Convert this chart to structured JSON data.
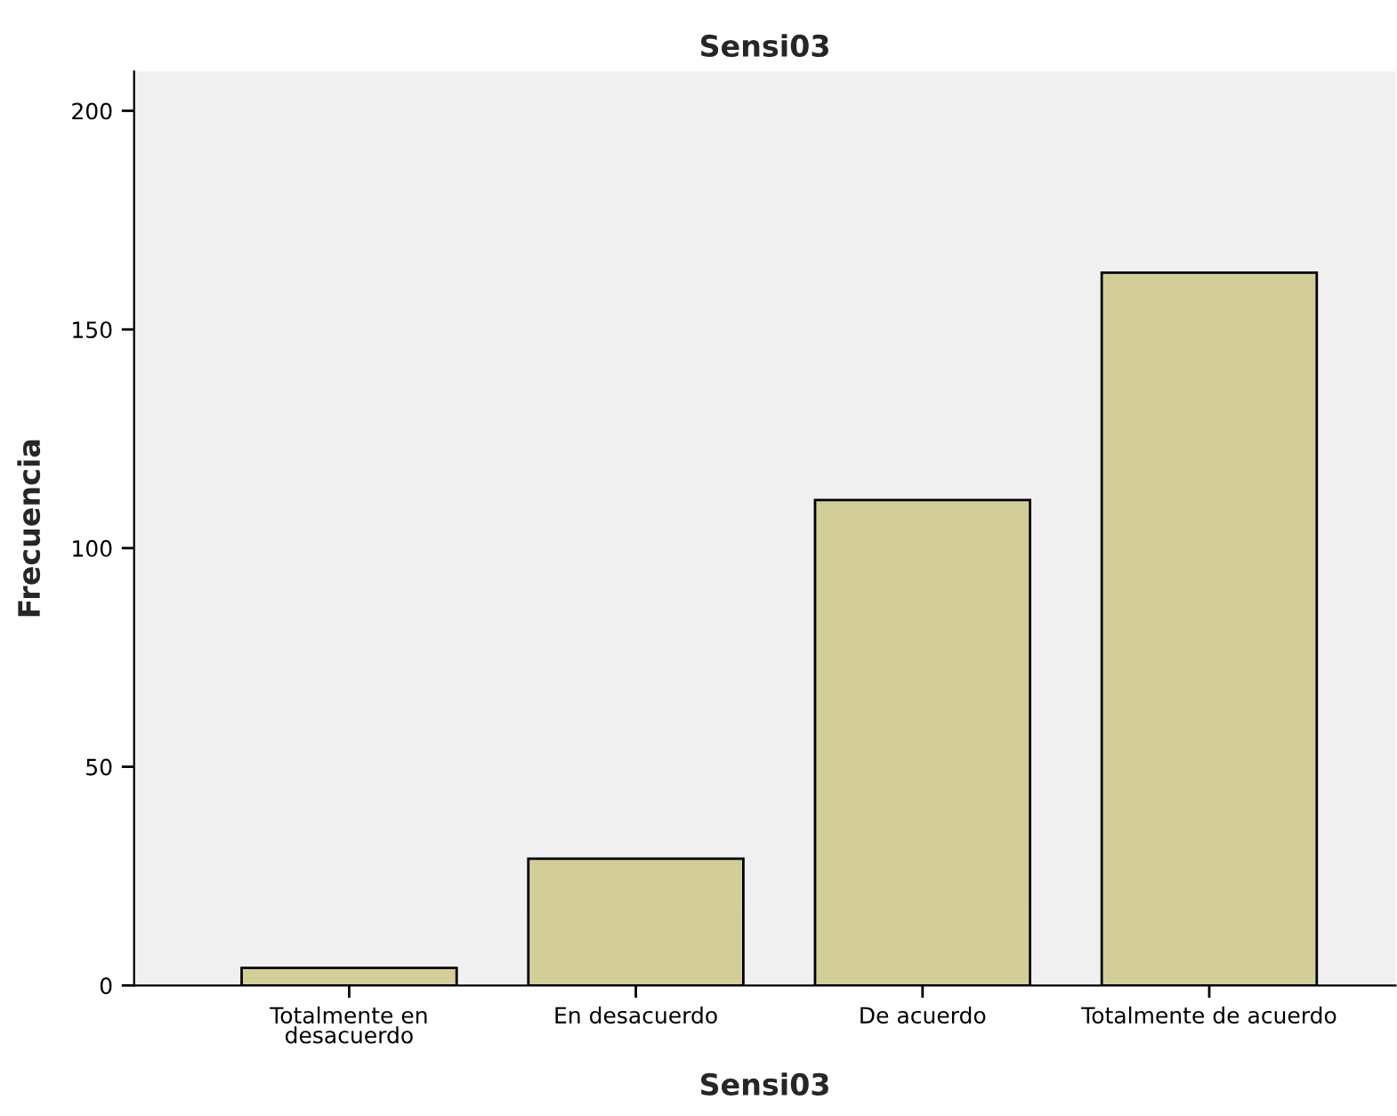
{
  "chart_data": {
    "type": "bar",
    "title": "Sensi03",
    "xlabel": "Sensi03",
    "ylabel": "Frecuencia",
    "categories": [
      "Totalmente en\ndesacuerdo",
      "En desacuerdo",
      "De acuerdo",
      "Totalmente de acuerdo"
    ],
    "values": [
      4,
      29,
      111,
      163
    ],
    "color": "#d3ce97",
    "ylim": [
      0,
      209
    ],
    "yticks": [
      0,
      50,
      100,
      150,
      200
    ],
    "grid": false
  }
}
